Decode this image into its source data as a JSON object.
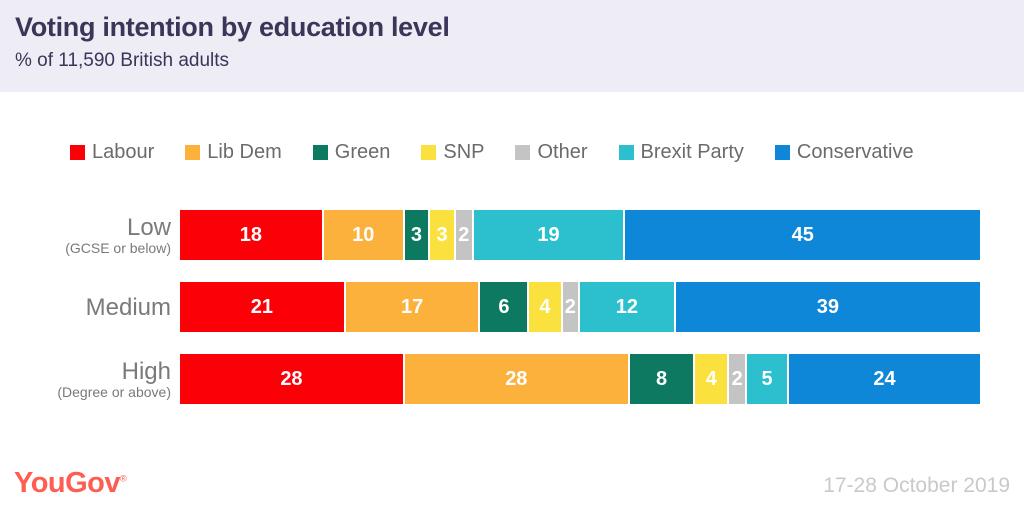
{
  "header": {
    "title": "Voting intention by education level",
    "subtitle": "% of 11,590 British adults"
  },
  "chart_data": {
    "type": "bar",
    "stacked": true,
    "orientation": "horizontal",
    "title": "Voting intention by education level",
    "subtitle": "% of 11,590 British adults",
    "legend_position": "top",
    "grid": false,
    "value_unit": "percent",
    "categories": [
      "Low (GCSE or below)",
      "Medium",
      "High (Degree or above)"
    ],
    "rows": [
      {
        "label": "Low",
        "sublabel": "(GCSE or below)"
      },
      {
        "label": "Medium",
        "sublabel": ""
      },
      {
        "label": "High",
        "sublabel": "(Degree or above)"
      }
    ],
    "series": [
      {
        "name": "Labour",
        "color": "#fb0007",
        "values": [
          18,
          21,
          28
        ]
      },
      {
        "name": "Lib Dem",
        "color": "#fcb13d",
        "values": [
          10,
          17,
          28
        ]
      },
      {
        "name": "Green",
        "color": "#0d7960",
        "values": [
          3,
          6,
          8
        ]
      },
      {
        "name": "SNP",
        "color": "#fae13e",
        "values": [
          3,
          4,
          4
        ]
      },
      {
        "name": "Other",
        "color": "#c4c4c4",
        "values": [
          2,
          2,
          2
        ]
      },
      {
        "name": "Brexit Party",
        "color": "#2cc0ce",
        "values": [
          19,
          12,
          5
        ]
      },
      {
        "name": "Conservative",
        "color": "#0f87d8",
        "values": [
          45,
          39,
          24
        ]
      }
    ]
  },
  "footer": {
    "logo_text": "YouGov",
    "registered_mark": "®",
    "date_range": "17-28 October 2019"
  },
  "colors": {
    "header_bg": "#eeedf5",
    "title_text": "#3a3559",
    "row_label_text": "#7a7a7a",
    "legend_text": "#6b6b6b",
    "logo": "#ff5c52",
    "date_text": "#c9c9c9",
    "segment_value_text": "#ffffff"
  }
}
